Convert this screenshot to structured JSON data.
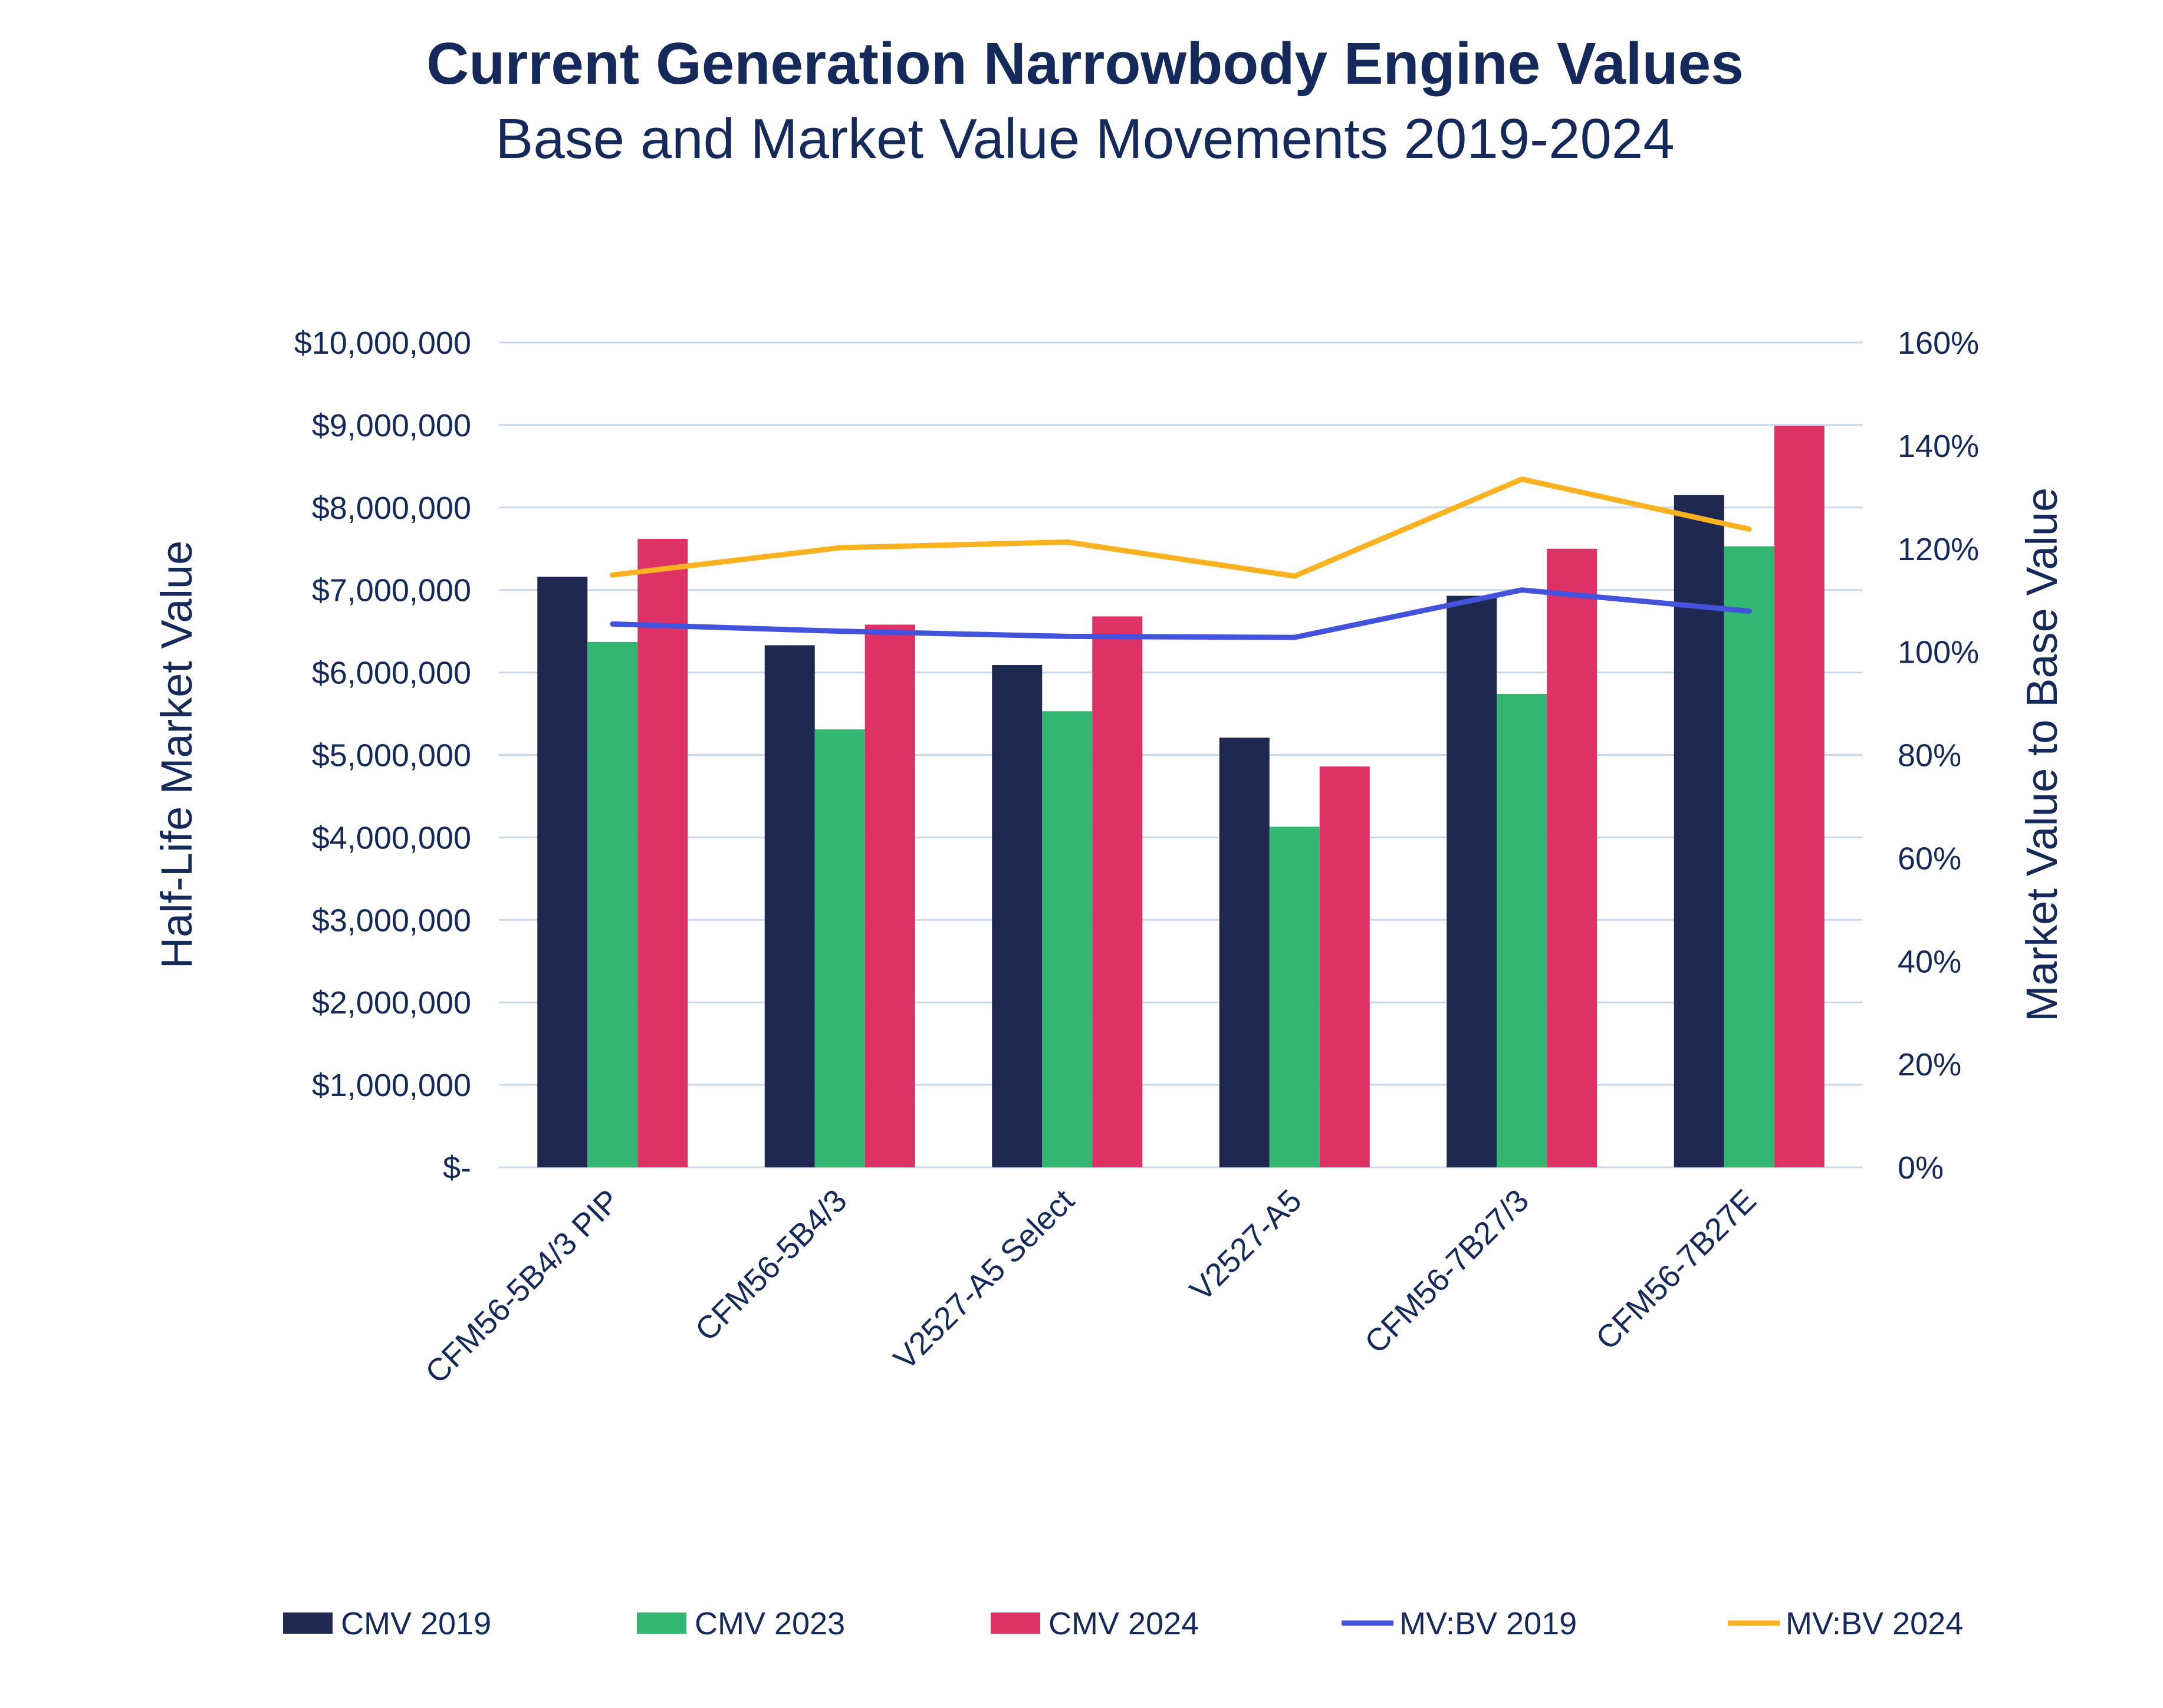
{
  "chart_data": {
    "type": "bar",
    "title": "Current Generation Narrowbody Engine Values",
    "subtitle": "Base and Market Value Movements 2019-2024",
    "ylabel": "Half-Life Market Value",
    "y2label": "Market Value to Base Value",
    "ylim": [
      0,
      10000000
    ],
    "y2lim": [
      0,
      1.6
    ],
    "yticks": [
      "$-",
      "$1,000,000",
      "$2,000,000",
      "$3,000,000",
      "$4,000,000",
      "$5,000,000",
      "$6,000,000",
      "$7,000,000",
      "$8,000,000",
      "$9,000,000",
      "$10,000,000"
    ],
    "y2ticks": [
      "0%",
      "20%",
      "40%",
      "60%",
      "80%",
      "100%",
      "120%",
      "140%",
      "160%"
    ],
    "grid": true,
    "legend_position": "bottom",
    "categories": [
      "CFM56-5B4/3 PIP",
      "CFM56-5B4/3",
      "V2527-A5 Select",
      "V2527-A5",
      "CFM56-7B27/3",
      "CFM56-7B27E"
    ],
    "series": [
      {
        "name": "CMV 2019",
        "type": "bar",
        "axis": "left",
        "color": "#1f2850",
        "values": [
          7160000,
          6330000,
          6090000,
          5210000,
          6930000,
          8150000
        ]
      },
      {
        "name": "CMV 2023",
        "type": "bar",
        "axis": "left",
        "color": "#32b672",
        "values": [
          6370000,
          5310000,
          5530000,
          4130000,
          5740000,
          7530000
        ]
      },
      {
        "name": "CMV 2024",
        "type": "bar",
        "axis": "left",
        "color": "#de3166",
        "values": [
          7620000,
          6580000,
          6680000,
          4860000,
          7500000,
          8990000
        ]
      },
      {
        "name": "MV:BV 2019",
        "type": "line",
        "axis": "right",
        "color": "#4353db",
        "values": [
          1.054,
          1.04,
          1.03,
          1.028,
          1.12,
          1.079
        ]
      },
      {
        "name": "MV:BV 2024",
        "type": "line",
        "axis": "right",
        "color": "#fbb220",
        "values": [
          1.149,
          1.202,
          1.213,
          1.147,
          1.335,
          1.238
        ]
      }
    ]
  }
}
